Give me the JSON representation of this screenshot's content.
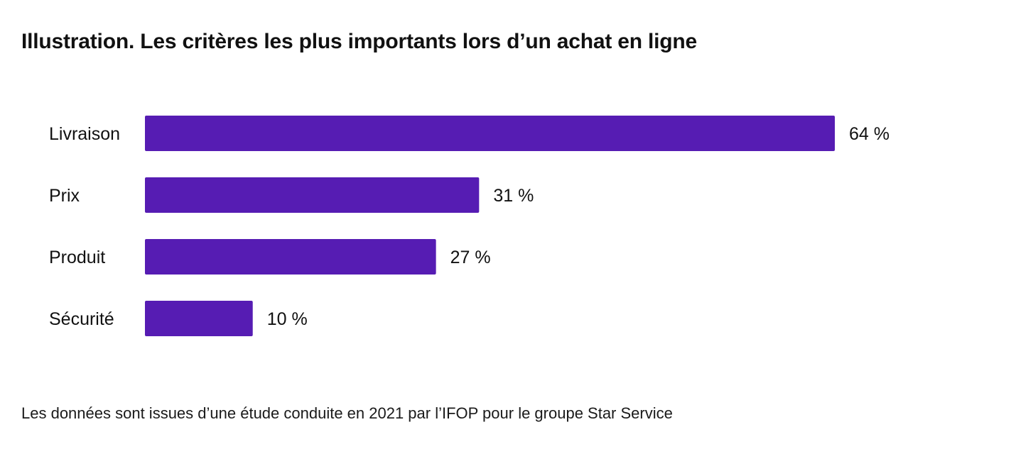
{
  "chart_data": {
    "type": "bar",
    "orientation": "horizontal",
    "title": "Illustration. Les critères les plus importants lors d’un achat en ligne",
    "categories": [
      "Livraison",
      "Prix",
      "Produit",
      "Sécurité"
    ],
    "values": [
      64,
      31,
      27,
      10
    ],
    "value_labels": [
      "64 %",
      "31 %",
      "27 %",
      "10 %"
    ],
    "unit": "%",
    "xlabel": "",
    "ylabel": "",
    "xlim": [
      0,
      64
    ],
    "grid": false,
    "legend": "none",
    "bar_color": "#561CB3",
    "source": "Les données sont issues d’une étude conduite en 2021 par l’IFOP pour le groupe Star Service"
  }
}
